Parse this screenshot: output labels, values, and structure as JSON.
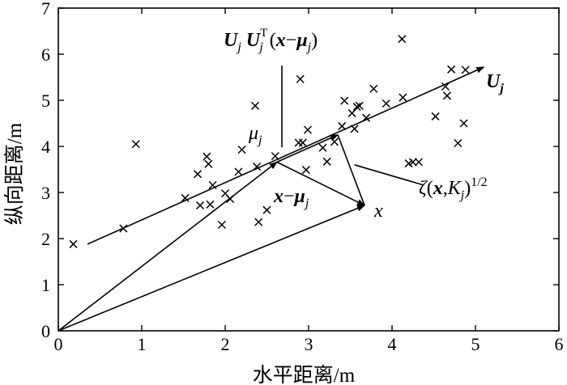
{
  "chart_data": {
    "type": "scatter",
    "title": "",
    "xlabel": "水平距离/m",
    "ylabel": "纵向距离/m",
    "xlim": [
      0,
      6
    ],
    "ylim": [
      0,
      7
    ],
    "xticks": [
      "0",
      "1",
      "2",
      "3",
      "4",
      "5",
      "6"
    ],
    "yticks": [
      "0",
      "1",
      "2",
      "3",
      "4",
      "5",
      "6",
      "7"
    ],
    "grid": false,
    "legend": "none",
    "points": [
      [
        0.18,
        1.88
      ],
      [
        0.78,
        2.22
      ],
      [
        0.93,
        4.05
      ],
      [
        1.52,
        2.88
      ],
      [
        1.67,
        3.4
      ],
      [
        1.7,
        2.72
      ],
      [
        1.78,
        3.78
      ],
      [
        1.8,
        3.62
      ],
      [
        1.82,
        2.74
      ],
      [
        1.85,
        3.16
      ],
      [
        1.96,
        2.3
      ],
      [
        2.0,
        2.98
      ],
      [
        2.06,
        2.86
      ],
      [
        2.16,
        3.45
      ],
      [
        2.2,
        3.93
      ],
      [
        2.36,
        4.88
      ],
      [
        2.38,
        3.56
      ],
      [
        2.4,
        2.36
      ],
      [
        2.5,
        2.62
      ],
      [
        2.6,
        3.79
      ],
      [
        2.88,
        4.08
      ],
      [
        2.9,
        5.46
      ],
      [
        2.93,
        4.08
      ],
      [
        2.97,
        3.49
      ],
      [
        2.99,
        4.36
      ],
      [
        3.17,
        3.97
      ],
      [
        3.22,
        3.67
      ],
      [
        3.31,
        4.1
      ],
      [
        3.4,
        4.44
      ],
      [
        3.43,
        4.99
      ],
      [
        3.52,
        4.72
      ],
      [
        3.55,
        4.38
      ],
      [
        3.58,
        4.86
      ],
      [
        3.61,
        4.88
      ],
      [
        3.69,
        4.62
      ],
      [
        3.78,
        5.25
      ],
      [
        3.93,
        4.93
      ],
      [
        4.12,
        6.33
      ],
      [
        4.13,
        5.06
      ],
      [
        4.2,
        3.63
      ],
      [
        4.25,
        3.66
      ],
      [
        4.32,
        3.66
      ],
      [
        4.52,
        4.65
      ],
      [
        4.64,
        5.3
      ],
      [
        4.66,
        5.1
      ],
      [
        4.71,
        5.67
      ],
      [
        4.79,
        4.07
      ],
      [
        4.86,
        4.5
      ],
      [
        4.88,
        5.66
      ]
    ],
    "principal_axis": {
      "from": [
        0.35,
        1.88
      ],
      "to": [
        5.1,
        5.72
      ],
      "label": "U",
      "subscript": "j"
    },
    "mean": {
      "x": 2.62,
      "y": 3.66,
      "label": "μ",
      "subscript": "j"
    },
    "sample": {
      "x": 3.67,
      "y": 2.72,
      "label": "x"
    },
    "projection": {
      "x": 3.35,
      "y": 4.25
    },
    "projection_label": "U_j U_j^T (x−μ_j)",
    "deviation_label": "x−μ_j",
    "distance_label": "ζ(x,K_j)^1/2",
    "annotations": {
      "proj_U1": "U",
      "proj_sub1": "j",
      "proj_U2": "U",
      "proj_sup2": "T",
      "proj_sub2": "j",
      "proj_open": "(",
      "proj_x": "x",
      "proj_minus": "−",
      "proj_mu": "μ",
      "proj_mu_sub": "j",
      "proj_close": ")",
      "dev_x": "x",
      "dev_minus": "−",
      "dev_mu": "μ",
      "dev_mu_sub": "j",
      "dist_zeta": "ζ",
      "dist_open": "(",
      "dist_x": "x",
      "dist_comma": ",",
      "dist_K": "K",
      "dist_K_sub": "j",
      "dist_close": ")",
      "dist_sup": "1/2"
    }
  }
}
